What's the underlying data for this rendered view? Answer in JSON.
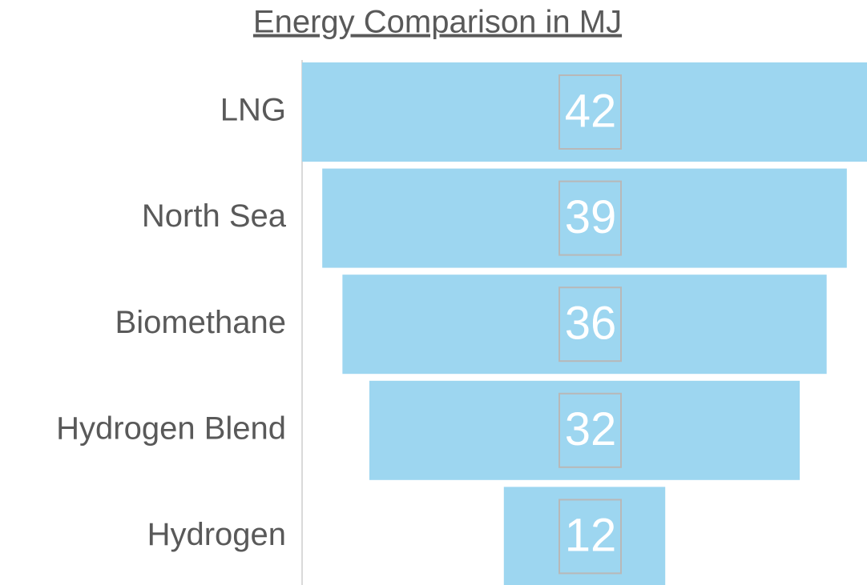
{
  "chart_data": {
    "type": "funnel",
    "title": "Energy Comparison in MJ",
    "categories": [
      "LNG",
      "North Sea",
      "Biomethane",
      "Hydrogen Blend",
      "Hydrogen"
    ],
    "values": [
      42,
      39,
      36,
      32,
      12
    ],
    "color": "#9dd6f0"
  }
}
